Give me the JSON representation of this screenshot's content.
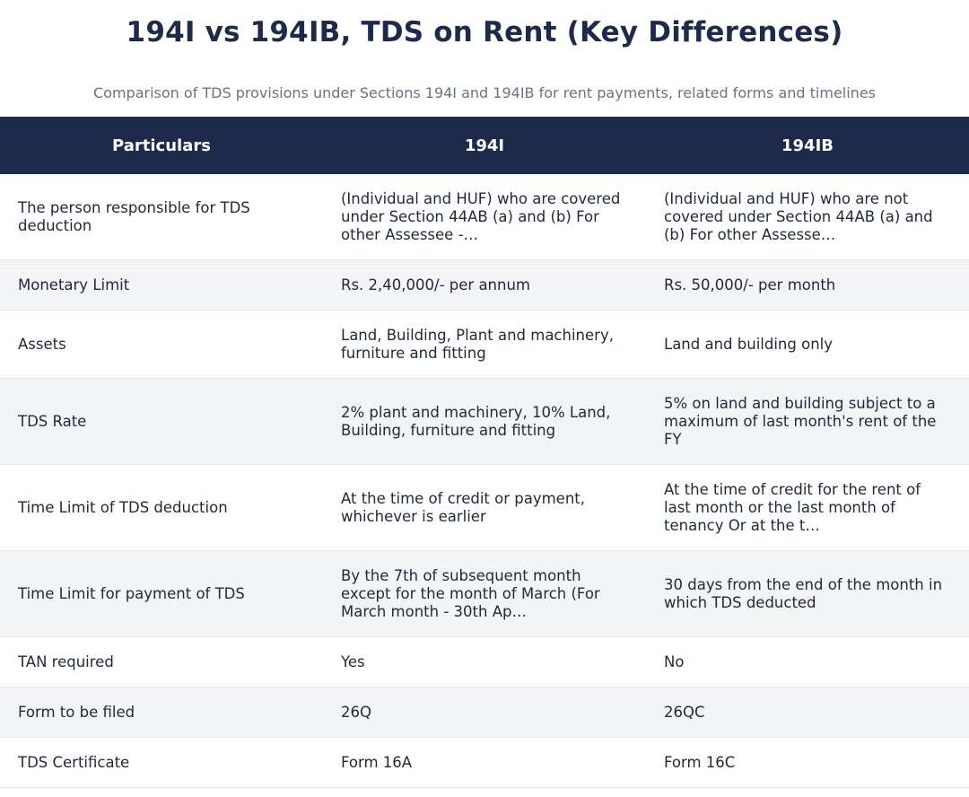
{
  "header": {
    "title": "194I vs 194IB, TDS on Rent (Key Differences)",
    "subtitle": "Comparison of TDS provisions under Sections 194I and 194IB for rent payments, related forms and timelines"
  },
  "table": {
    "columns": [
      "Particulars",
      "194I",
      "194IB"
    ],
    "rows": [
      {
        "particular": "The person responsible for TDS deduction",
        "s194i": "(Individual and HUF) who are covered under Section 44AB (a) and (b) For other Assessee -…",
        "s194ib": "(Individual and HUF) who are not covered under Section 44AB (a) and (b) For other Assesse…"
      },
      {
        "particular": "Monetary Limit",
        "s194i": "Rs. 2,40,000/- per annum",
        "s194ib": "Rs. 50,000/- per month"
      },
      {
        "particular": "Assets",
        "s194i": "Land, Building, Plant and machinery, furniture and fitting",
        "s194ib": "Land and building only"
      },
      {
        "particular": "TDS Rate",
        "s194i": "2% plant and machinery, 10% Land, Building, furniture and fitting",
        "s194ib": "5% on land and building subject to a maximum of last month's rent of the FY"
      },
      {
        "particular": "Time Limit of TDS deduction",
        "s194i": "At the time of credit or payment, whichever is earlier",
        "s194ib": "At the time of credit for the rent of last month or the last month of tenancy Or at the t…"
      },
      {
        "particular": "Time Limit for payment of TDS",
        "s194i": "By the 7th of subsequent month except for the month of March (For March month - 30th Ap…",
        "s194ib": "30 days from the end of the month in which TDS deducted"
      },
      {
        "particular": "TAN required",
        "s194i": "Yes",
        "s194ib": "No"
      },
      {
        "particular": "Form to be filed",
        "s194i": "26Q",
        "s194ib": "26QC"
      },
      {
        "particular": "TDS Certificate",
        "s194i": "Form 16A",
        "s194ib": "Form 16C"
      }
    ]
  },
  "colors": {
    "header_bg": "#1e2a4a",
    "title": "#1e2a4a",
    "subtitle": "#6b7280",
    "zebra": "#f3f4f6"
  }
}
